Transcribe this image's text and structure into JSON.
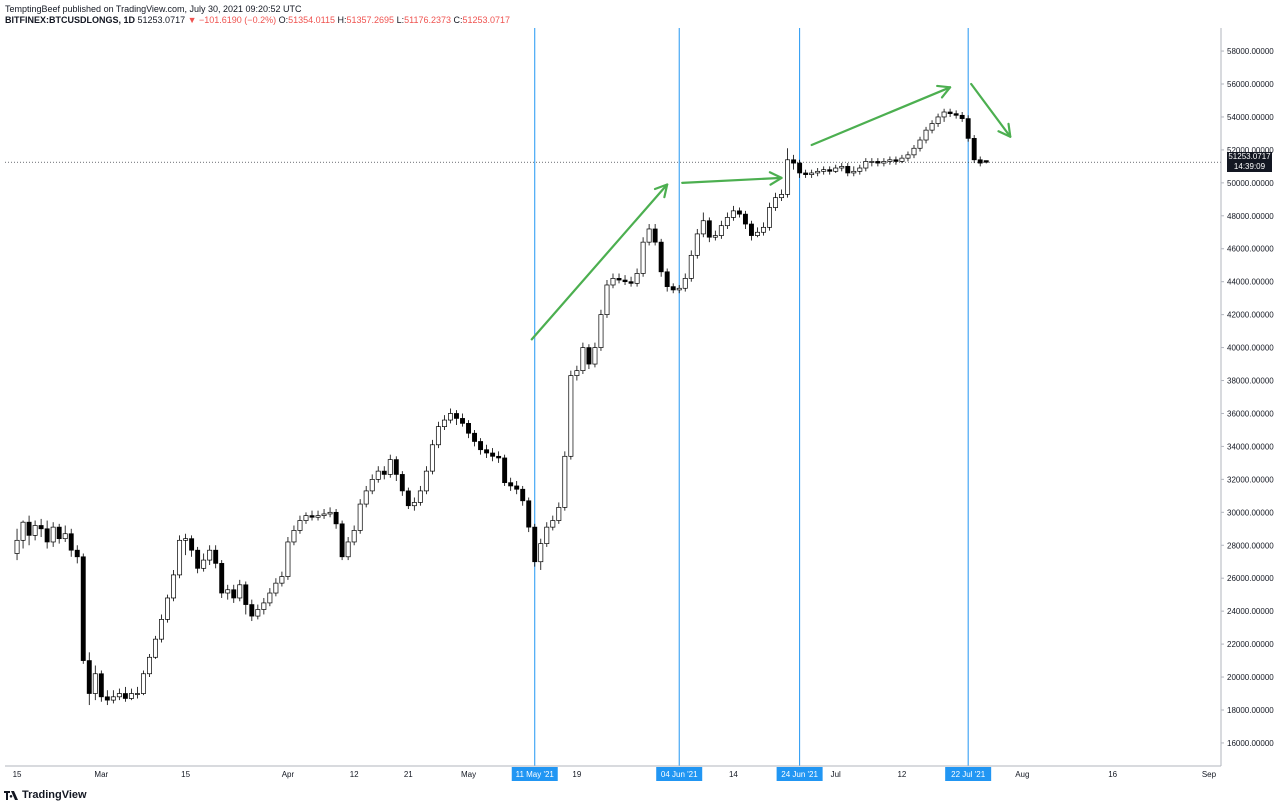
{
  "header": {
    "line1": "TemptingBeef published on TradingView.com, July 30, 2021 09:20:52 UTC",
    "symbol": "BITFINEX:BTCUSDLONGS, 1D",
    "last": "51253.0717",
    "change": "▼ −101.6190 (−0.2%)",
    "o_label": "O:",
    "o": "51354.0115",
    "h_label": "H:",
    "h": "51357.2695",
    "l_label": "L:",
    "l": "51176.2373",
    "c_label": "C:",
    "c": "51253.0717"
  },
  "price_tag": {
    "price": "51253.0717",
    "countdown": "14:39:09"
  },
  "logo": {
    "text": "TradingView"
  },
  "colors": {
    "up_candle": "#ffffff",
    "down_candle": "#000000",
    "vline": "#2196f3",
    "arrow": "#4caf50",
    "tag_bg": "#2196f3"
  },
  "chart_data": {
    "type": "candlestick",
    "y_ticks": [
      "16000.00000",
      "18000.00000",
      "20000.00000",
      "22000.00000",
      "24000.00000",
      "26000.00000",
      "28000.00000",
      "30000.00000",
      "32000.00000",
      "34000.00000",
      "36000.00000",
      "38000.00000",
      "40000.00000",
      "42000.00000",
      "44000.00000",
      "46000.00000",
      "48000.00000",
      "50000.00000",
      "52000.00000",
      "54000.00000",
      "56000.00000",
      "58000.00000"
    ],
    "ylim": [
      14600,
      59400
    ],
    "x_ticks": [
      {
        "label": "15",
        "day": 0
      },
      {
        "label": "Mar",
        "day": 14
      },
      {
        "label": "15",
        "day": 28
      },
      {
        "label": "Apr",
        "day": 45
      },
      {
        "label": "12",
        "day": 56
      },
      {
        "label": "21",
        "day": 65
      },
      {
        "label": "May",
        "day": 75
      },
      {
        "label": "19",
        "day": 93
      },
      {
        "label": "14",
        "day": 119
      },
      {
        "label": "Jul",
        "day": 136
      },
      {
        "label": "12",
        "day": 147
      },
      {
        "label": "Aug",
        "day": 167
      },
      {
        "label": "16",
        "day": 182
      },
      {
        "label": "Sep",
        "day": 198
      }
    ],
    "x_range": [
      -2,
      200
    ],
    "vlines": [
      {
        "label": "11 May '21",
        "day": 86
      },
      {
        "label": "04 Jun '21",
        "day": 110
      },
      {
        "label": "24 Jun '21",
        "day": 130
      },
      {
        "label": "22 Jul '21",
        "day": 158
      }
    ],
    "last_price": 51253.07,
    "candles": [
      [
        27500,
        28300,
        29000,
        27100
      ],
      [
        28300,
        29400,
        29500,
        27800
      ],
      [
        29400,
        28600,
        29800,
        28000
      ],
      [
        28600,
        29200,
        29500,
        28300
      ],
      [
        29200,
        29000,
        29600,
        28500
      ],
      [
        29000,
        28200,
        29500,
        27800
      ],
      [
        28200,
        29100,
        29400,
        27900
      ],
      [
        29100,
        28400,
        29300,
        28100
      ],
      [
        28400,
        28700,
        29200,
        28200
      ],
      [
        28700,
        27700,
        29000,
        27300
      ],
      [
        27700,
        27300,
        28000,
        26900
      ],
      [
        27300,
        21000,
        27500,
        20800
      ],
      [
        21000,
        19000,
        21500,
        18300
      ],
      [
        19000,
        20200,
        20700,
        18600
      ],
      [
        20200,
        18800,
        20400,
        18500
      ],
      [
        18800,
        18600,
        19200,
        18300
      ],
      [
        18600,
        18800,
        19200,
        18400
      ],
      [
        18800,
        19000,
        19300,
        18600
      ],
      [
        19000,
        18700,
        19400,
        18500
      ],
      [
        18700,
        19000,
        19300,
        18600
      ],
      [
        19000,
        19000,
        19400,
        18700
      ],
      [
        19000,
        20200,
        20400,
        18900
      ],
      [
        20200,
        21200,
        21400,
        20000
      ],
      [
        21200,
        22300,
        22500,
        21100
      ],
      [
        22300,
        23500,
        23800,
        22100
      ],
      [
        23500,
        24800,
        25000,
        23300
      ],
      [
        24800,
        26200,
        26500,
        24600
      ],
      [
        26200,
        28300,
        28600,
        26000
      ],
      [
        28300,
        28400,
        28700,
        27400
      ],
      [
        28400,
        27700,
        28600,
        27300
      ],
      [
        27700,
        26600,
        27900,
        26300
      ],
      [
        26600,
        27100,
        27500,
        26400
      ],
      [
        27100,
        27700,
        28000,
        26800
      ],
      [
        27700,
        26900,
        28000,
        26600
      ],
      [
        26900,
        25100,
        27100,
        24800
      ],
      [
        25100,
        25300,
        25600,
        24700
      ],
      [
        25300,
        24800,
        25600,
        24500
      ],
      [
        24800,
        25600,
        25900,
        24600
      ],
      [
        25600,
        24400,
        25800,
        23800
      ],
      [
        24400,
        23700,
        24700,
        23400
      ],
      [
        23700,
        24100,
        24400,
        23500
      ],
      [
        24100,
        24500,
        24800,
        23800
      ],
      [
        24500,
        25100,
        25400,
        24300
      ],
      [
        25100,
        25700,
        26000,
        24900
      ],
      [
        25700,
        26100,
        26400,
        25500
      ],
      [
        26100,
        28200,
        28500,
        25900
      ],
      [
        28200,
        28900,
        29200,
        28000
      ],
      [
        28900,
        29500,
        29800,
        28700
      ],
      [
        29500,
        29800,
        30000,
        29300
      ],
      [
        29800,
        29700,
        30100,
        29500
      ],
      [
        29700,
        29800,
        30100,
        29500
      ],
      [
        29800,
        29900,
        30200,
        29600
      ],
      [
        29900,
        30000,
        30300,
        29700
      ],
      [
        30000,
        29300,
        30200,
        29000
      ],
      [
        29300,
        27300,
        29500,
        27100
      ],
      [
        27300,
        28200,
        28500,
        27100
      ],
      [
        28200,
        28900,
        29200,
        28000
      ],
      [
        28900,
        30500,
        30800,
        28700
      ],
      [
        30500,
        31300,
        31600,
        30300
      ],
      [
        31300,
        32000,
        32300,
        31100
      ],
      [
        32000,
        32500,
        32800,
        31800
      ],
      [
        32500,
        32300,
        32800,
        32000
      ],
      [
        32300,
        33200,
        33500,
        32100
      ],
      [
        33200,
        32300,
        33400,
        31900
      ],
      [
        32300,
        31300,
        32500,
        31000
      ],
      [
        31300,
        30400,
        31500,
        30200
      ],
      [
        30400,
        30600,
        30900,
        30100
      ],
      [
        30600,
        31300,
        31600,
        30400
      ],
      [
        31300,
        32500,
        32800,
        31100
      ],
      [
        32500,
        34100,
        34400,
        32300
      ],
      [
        34100,
        35200,
        35500,
        33900
      ],
      [
        35200,
        35600,
        35900,
        35000
      ],
      [
        35600,
        36000,
        36300,
        35400
      ],
      [
        36000,
        35700,
        36200,
        35300
      ],
      [
        35700,
        35400,
        36000,
        35200
      ],
      [
        35400,
        34800,
        35600,
        34500
      ],
      [
        34800,
        34300,
        35000,
        34000
      ],
      [
        34300,
        33800,
        34500,
        33500
      ],
      [
        33800,
        33600,
        34100,
        33300
      ],
      [
        33600,
        33400,
        33900,
        33100
      ],
      [
        33400,
        33300,
        33700,
        33000
      ],
      [
        33300,
        31800,
        33500,
        31600
      ],
      [
        31800,
        31600,
        32100,
        31300
      ],
      [
        31600,
        31400,
        31900,
        31100
      ],
      [
        31400,
        30700,
        31600,
        30400
      ],
      [
        30700,
        29100,
        30900,
        28800
      ],
      [
        29100,
        27000,
        29300,
        26700
      ],
      [
        27000,
        28100,
        28400,
        26500
      ],
      [
        28100,
        29100,
        29400,
        27900
      ],
      [
        29100,
        29500,
        29800,
        28900
      ],
      [
        29500,
        30300,
        30600,
        29300
      ],
      [
        30300,
        33400,
        33700,
        30100
      ],
      [
        33400,
        38300,
        38600,
        33200
      ],
      [
        38300,
        38600,
        38900,
        38000
      ],
      [
        38600,
        40000,
        40300,
        38400
      ],
      [
        40000,
        39000,
        40200,
        38700
      ],
      [
        39000,
        40000,
        40300,
        38800
      ],
      [
        40000,
        42000,
        42300,
        39800
      ],
      [
        42000,
        43800,
        44100,
        41800
      ],
      [
        43800,
        44200,
        44500,
        43600
      ],
      [
        44200,
        44100,
        44500,
        43900
      ],
      [
        44100,
        44000,
        44400,
        43800
      ],
      [
        44000,
        43900,
        44300,
        43700
      ],
      [
        43900,
        44500,
        44800,
        43700
      ],
      [
        44500,
        46400,
        46700,
        44300
      ],
      [
        46400,
        47200,
        47500,
        46200
      ],
      [
        47200,
        46400,
        47500,
        46200
      ],
      [
        46400,
        44600,
        46600,
        44300
      ],
      [
        44600,
        43700,
        44800,
        43400
      ],
      [
        43700,
        43500,
        43900,
        43300
      ],
      [
        43500,
        43600,
        43800,
        43300
      ],
      [
        43600,
        44200,
        44500,
        43400
      ],
      [
        44200,
        45600,
        45900,
        44000
      ],
      [
        45600,
        46900,
        47200,
        45400
      ],
      [
        46900,
        47700,
        48200,
        46700
      ],
      [
        47700,
        46700,
        47900,
        46400
      ],
      [
        46700,
        46800,
        47100,
        46500
      ],
      [
        46800,
        47400,
        47700,
        46600
      ],
      [
        47400,
        47900,
        48200,
        47200
      ],
      [
        47900,
        48300,
        48600,
        47700
      ],
      [
        48300,
        48100,
        48500,
        47900
      ],
      [
        48100,
        47500,
        48300,
        47200
      ],
      [
        47500,
        46800,
        47700,
        46500
      ],
      [
        46800,
        47000,
        47300,
        46700
      ],
      [
        47000,
        47300,
        47600,
        46800
      ],
      [
        47300,
        48500,
        48800,
        47100
      ],
      [
        48500,
        49100,
        49400,
        48300
      ],
      [
        49100,
        49300,
        49600,
        48900
      ],
      [
        49300,
        51400,
        52100,
        49100
      ],
      [
        51400,
        51200,
        51700,
        50800
      ],
      [
        51200,
        50600,
        51400,
        50300
      ],
      [
        50600,
        50500,
        50800,
        50300
      ],
      [
        50500,
        50600,
        50800,
        50300
      ],
      [
        50600,
        50700,
        50900,
        50400
      ],
      [
        50700,
        50800,
        51000,
        50500
      ],
      [
        50800,
        50700,
        51000,
        50500
      ],
      [
        50700,
        50900,
        51100,
        50600
      ],
      [
        50900,
        51000,
        51200,
        50700
      ],
      [
        51000,
        50600,
        51200,
        50400
      ],
      [
        50600,
        50700,
        51000,
        50400
      ],
      [
        50700,
        50900,
        51100,
        50500
      ],
      [
        50900,
        51300,
        51500,
        50700
      ],
      [
        51300,
        51300,
        51500,
        51000
      ],
      [
        51300,
        51200,
        51500,
        51000
      ],
      [
        51200,
        51300,
        51500,
        51000
      ],
      [
        51300,
        51400,
        51600,
        51100
      ],
      [
        51400,
        51300,
        51600,
        51100
      ],
      [
        51300,
        51500,
        51700,
        51200
      ],
      [
        51500,
        51700,
        51900,
        51300
      ],
      [
        51700,
        52100,
        52300,
        51500
      ],
      [
        52100,
        52600,
        52800,
        51900
      ],
      [
        52600,
        53200,
        53400,
        52400
      ],
      [
        53200,
        53600,
        53800,
        53000
      ],
      [
        53600,
        54000,
        54200,
        53400
      ],
      [
        54000,
        54300,
        54500,
        53700
      ],
      [
        54300,
        54200,
        54500,
        54000
      ],
      [
        54200,
        54100,
        54400,
        53900
      ],
      [
        54100,
        53900,
        54300,
        53700
      ],
      [
        53900,
        52700,
        54100,
        52500
      ],
      [
        52700,
        51400,
        52900,
        51200
      ],
      [
        51400,
        51200,
        51600,
        51000
      ],
      [
        51350,
        51250,
        51360,
        51180
      ]
    ]
  }
}
